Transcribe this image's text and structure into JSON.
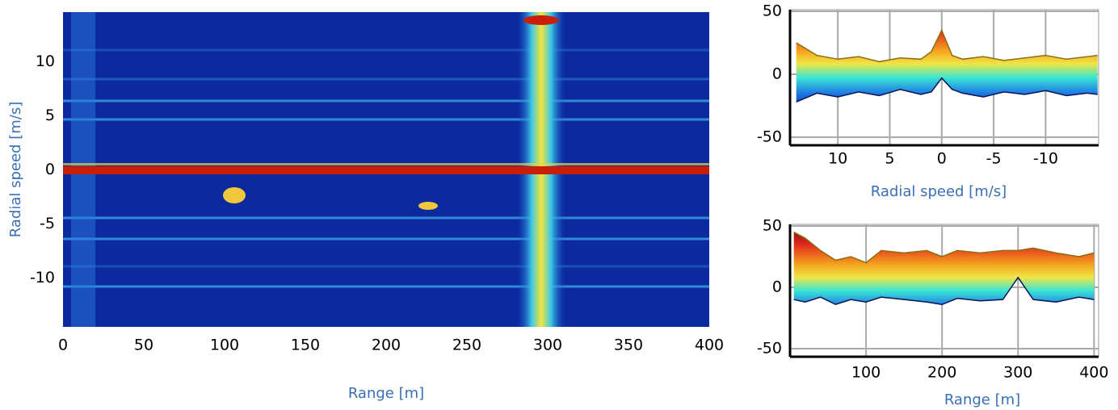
{
  "chart_data": [
    {
      "type": "heatmap",
      "xlabel": "Range [m]",
      "ylabel": "Radial speed [m/s]",
      "xlim": [
        0,
        400
      ],
      "ylim": [
        -14.5,
        14.6
      ],
      "xticks": [
        0,
        50,
        100,
        150,
        200,
        250,
        300,
        350,
        400
      ],
      "yticks": [
        10,
        5,
        0,
        -5,
        -10
      ]
    },
    {
      "type": "area",
      "xlabel": "Radial speed [m/s]",
      "xlim": [
        14.6,
        -15.1
      ],
      "ylim": [
        -56.4,
        51.3
      ],
      "xticks": [
        10,
        5,
        0,
        -5,
        -10
      ],
      "yticks": [
        50,
        0,
        -50
      ],
      "grid": true,
      "x": [
        14,
        12,
        10,
        8,
        6,
        4,
        2,
        1,
        0,
        -1,
        -2,
        -4,
        -6,
        -8,
        -10,
        -12,
        -14,
        -15
      ],
      "series": [
        {
          "values": [
            25,
            15,
            12,
            14,
            10,
            13,
            12,
            18,
            35,
            15,
            12,
            14,
            11,
            13,
            15,
            12,
            14,
            15
          ]
        },
        {
          "values": [
            -22,
            -15,
            -18,
            -14,
            -17,
            -12,
            -16,
            -14,
            -3,
            -12,
            -15,
            -18,
            -14,
            -16,
            -13,
            -17,
            -15,
            -16
          ]
        }
      ]
    },
    {
      "type": "area",
      "xlabel": "Range [m]",
      "xlim": [
        0,
        406
      ],
      "ylim": [
        -56.6,
        51.3
      ],
      "xticks": [
        100,
        200,
        300,
        400
      ],
      "yticks": [
        50,
        0,
        -50
      ],
      "grid": true,
      "x": [
        5,
        20,
        40,
        60,
        80,
        100,
        120,
        150,
        180,
        200,
        220,
        250,
        280,
        300,
        320,
        350,
        380,
        400
      ],
      "series": [
        {
          "values": [
            45,
            40,
            30,
            22,
            25,
            20,
            30,
            28,
            30,
            25,
            30,
            28,
            30,
            30,
            32,
            28,
            25,
            28
          ]
        },
        {
          "values": [
            -10,
            -12,
            -8,
            -14,
            -10,
            -12,
            -8,
            -10,
            -12,
            -14,
            -9,
            -11,
            -10,
            8,
            -10,
            -12,
            -8,
            -10
          ]
        }
      ]
    }
  ]
}
